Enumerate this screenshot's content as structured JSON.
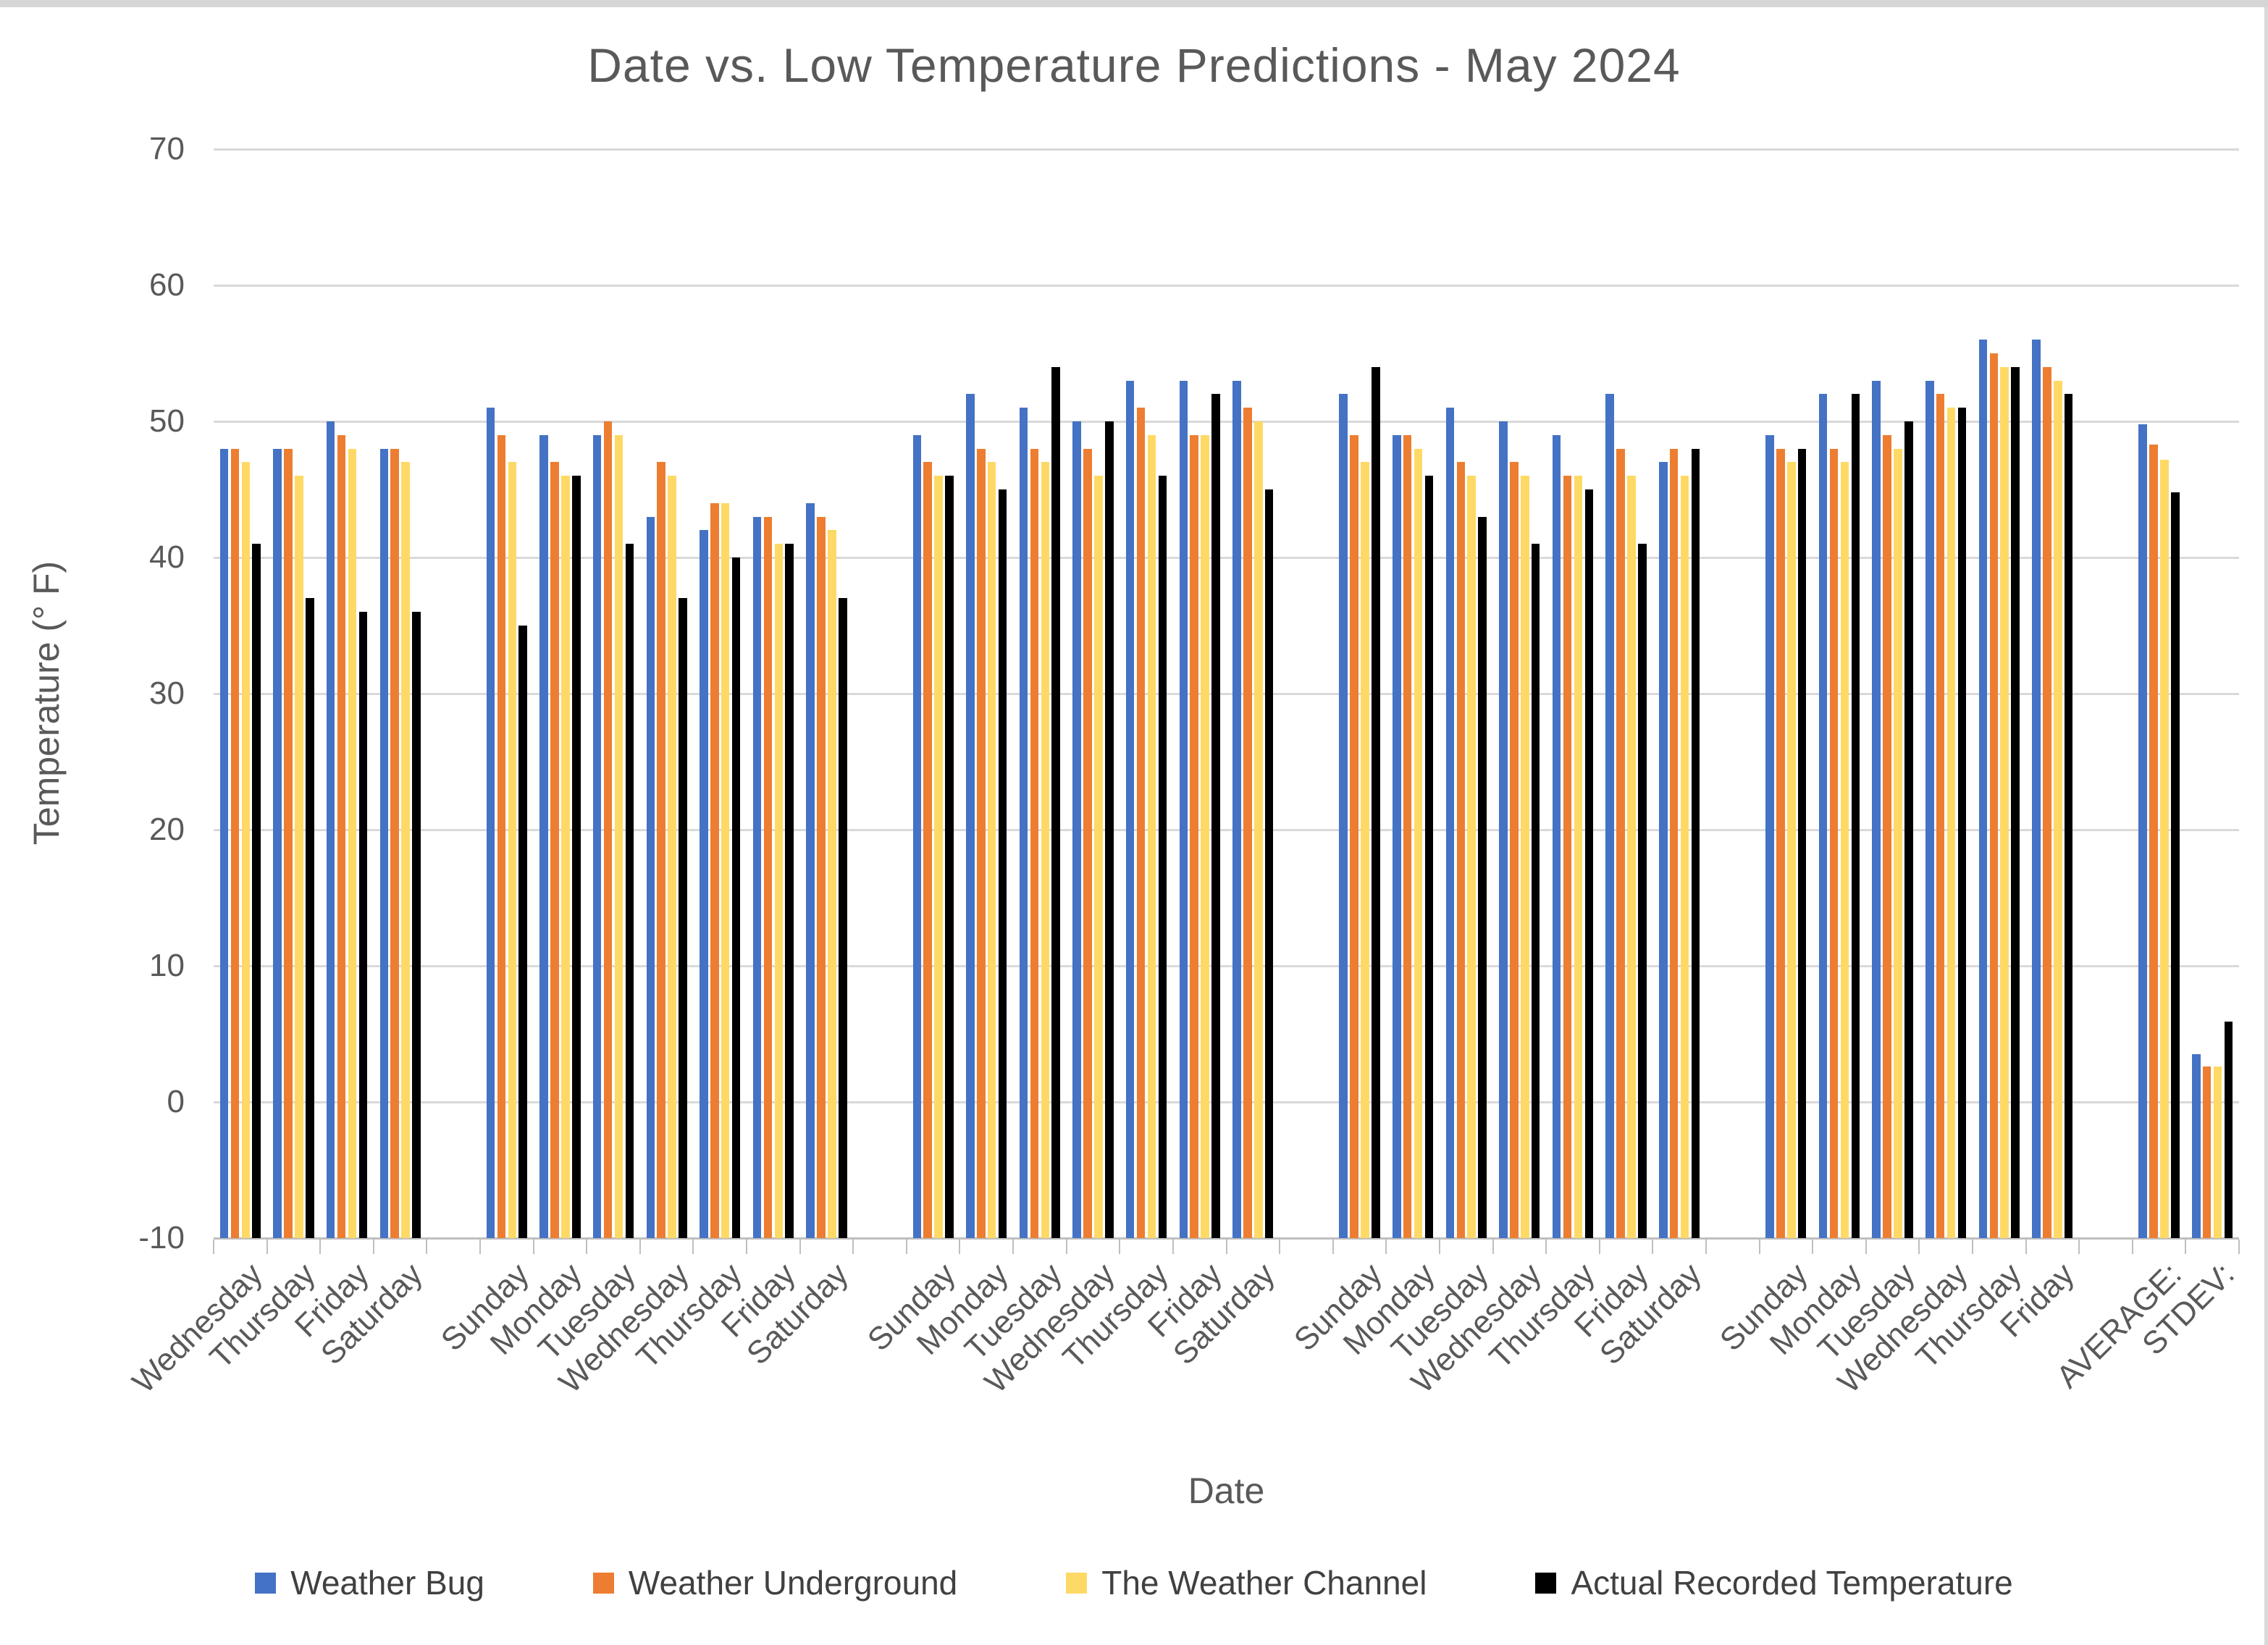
{
  "chart_data": {
    "type": "bar",
    "title": "Date vs. Low Temperature Predictions - May 2024",
    "xlabel": "Date",
    "ylabel": "Temperature (° F)",
    "ylim": [
      -10,
      70
    ],
    "y_ticks": [
      70,
      60,
      50,
      40,
      30,
      20,
      10,
      0,
      -10
    ],
    "grid": true,
    "legend_position": "bottom",
    "categories": [
      "Wednesday",
      "Thursday",
      "Friday",
      "Saturday",
      "Sunday",
      "Monday",
      "Tuesday",
      "Wednesday",
      "Thursday",
      "Friday",
      "Saturday",
      "Sunday",
      "Monday",
      "Tuesday",
      "Wednesday",
      "Thursday",
      "Friday",
      "Saturday",
      "Sunday",
      "Monday",
      "Tuesday",
      "Wednesday",
      "Thursday",
      "Friday",
      "Saturday",
      "Sunday",
      "Monday",
      "Tuesday",
      "Wednesday",
      "Thursday",
      "Friday",
      "AVERAGE:",
      "STDEV:"
    ],
    "gap_after": [
      3,
      10,
      17,
      24,
      30
    ],
    "series": [
      {
        "name": "Weather Bug",
        "color": "#4472C4",
        "values": [
          48,
          48,
          50,
          48,
          51,
          49,
          49,
          43,
          42,
          43,
          44,
          49,
          52,
          51,
          50,
          53,
          53,
          53,
          52,
          49,
          51,
          50,
          49,
          52,
          47,
          49,
          52,
          53,
          53,
          56,
          56,
          49.8,
          3.5
        ]
      },
      {
        "name": "Weather Underground",
        "color": "#ED7D31",
        "values": [
          48,
          48,
          49,
          48,
          49,
          47,
          50,
          47,
          44,
          43,
          43,
          47,
          48,
          48,
          48,
          51,
          49,
          51,
          49,
          49,
          47,
          47,
          46,
          48,
          48,
          48,
          48,
          49,
          52,
          55,
          54,
          48.3,
          2.6
        ]
      },
      {
        "name": "The Weather Channel",
        "color": "#FFD966",
        "values": [
          47,
          46,
          48,
          47,
          47,
          46,
          49,
          46,
          44,
          41,
          42,
          46,
          47,
          47,
          46,
          49,
          49,
          50,
          47,
          48,
          46,
          46,
          46,
          46,
          46,
          47,
          47,
          48,
          51,
          54,
          53,
          47.2,
          2.6
        ]
      },
      {
        "name": "Actual Recorded Temperature",
        "color": "#000000",
        "values": [
          41,
          37,
          36,
          36,
          35,
          46,
          41,
          37,
          40,
          41,
          37,
          46,
          45,
          54,
          50,
          46,
          52,
          45,
          54,
          46,
          43,
          41,
          45,
          41,
          48,
          48,
          52,
          50,
          51,
          54,
          52,
          44.8,
          5.9
        ]
      }
    ]
  }
}
